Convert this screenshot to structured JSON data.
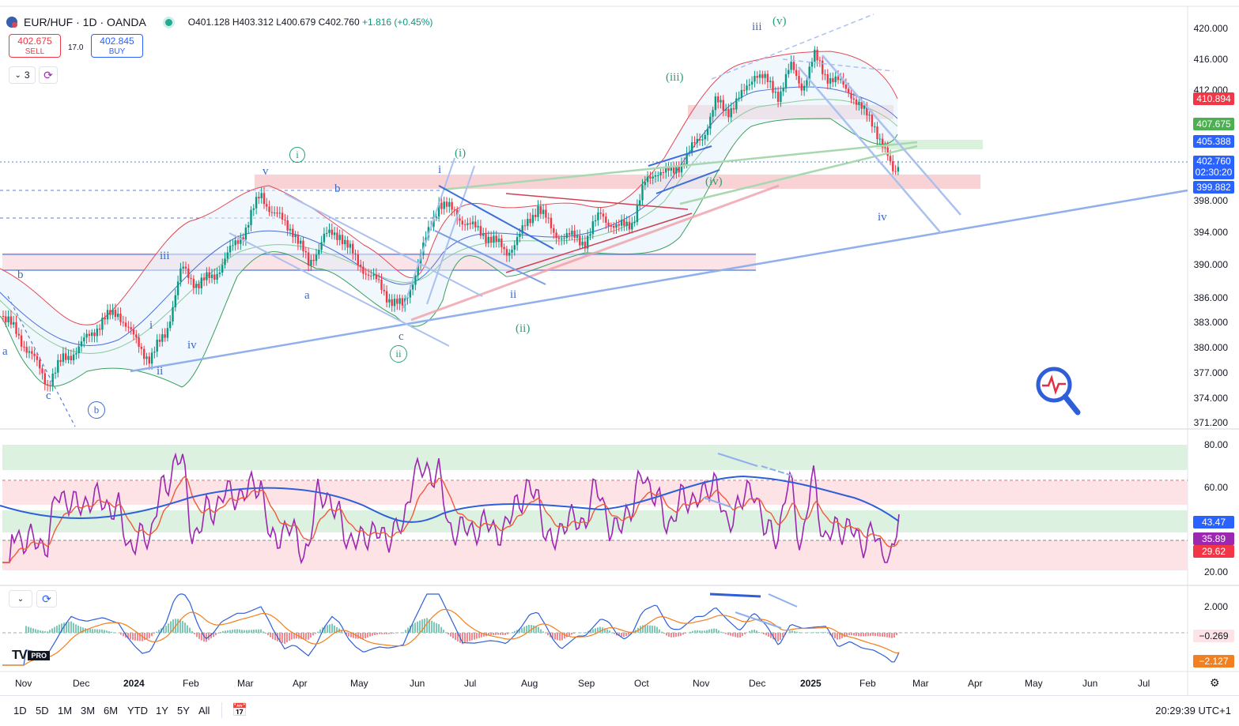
{
  "header": {
    "symbol": "EUR/HUF · 1D · OANDA",
    "ohlc": "O401.128 H403.312 L400.679 C402.760",
    "change": "+1.816 (+0.45%)"
  },
  "trade": {
    "sell_price": "402.675",
    "sell_label": "SELL",
    "spread": "17.0",
    "buy_price": "402.845",
    "buy_label": "BUY"
  },
  "indicator_toggle": {
    "count": "3"
  },
  "price_axis": [
    "420.000",
    "416.000",
    "412.000",
    "398.000",
    "394.000",
    "390.000",
    "386.000",
    "383.000",
    "380.000",
    "377.000",
    "374.000",
    "371.200"
  ],
  "price_tags": {
    "red": "410.894",
    "green": "407.675",
    "blue": "405.388",
    "last": "402.760",
    "countdown": "02:30:20",
    "support": "399.882"
  },
  "rsi_axis": [
    "80.00",
    "60.00",
    "20.00"
  ],
  "rsi_tags": {
    "blue": "43.47",
    "purple": "35.89",
    "red": "29.62"
  },
  "macd_axis": [
    "2.000"
  ],
  "macd_tags": {
    "hist": "−0.269",
    "signal": "−2.127"
  },
  "time_axis": [
    "Nov",
    "Dec",
    "2024",
    "Feb",
    "Mar",
    "Apr",
    "May",
    "Jun",
    "Jul",
    "Aug",
    "Sep",
    "Oct",
    "Nov",
    "Dec",
    "2025",
    "Feb",
    "Mar",
    "Apr",
    "May",
    "Jun",
    "Jul"
  ],
  "wave_labels": {
    "blue": [
      "a",
      "b",
      "c",
      "iii",
      "i",
      "ii",
      "iv",
      "v",
      "a",
      "b",
      "c",
      "i",
      "ii",
      "iii",
      "iv"
    ],
    "green": [
      "ⓘ",
      "(i)",
      "ⓘⓘ",
      "(ii)",
      "(iii)",
      "(iv)",
      "(v)",
      "ⓑ"
    ]
  },
  "timeframes": [
    "1D",
    "5D",
    "1M",
    "3M",
    "6M",
    "YTD",
    "1Y",
    "5Y",
    "All"
  ],
  "clock": "20:29:39 UTC+1",
  "logo_text": "PRO",
  "colors": {
    "up": "#089981",
    "down": "#f23645",
    "accent": "#2962ff",
    "rsi": "#9c27b0"
  }
}
